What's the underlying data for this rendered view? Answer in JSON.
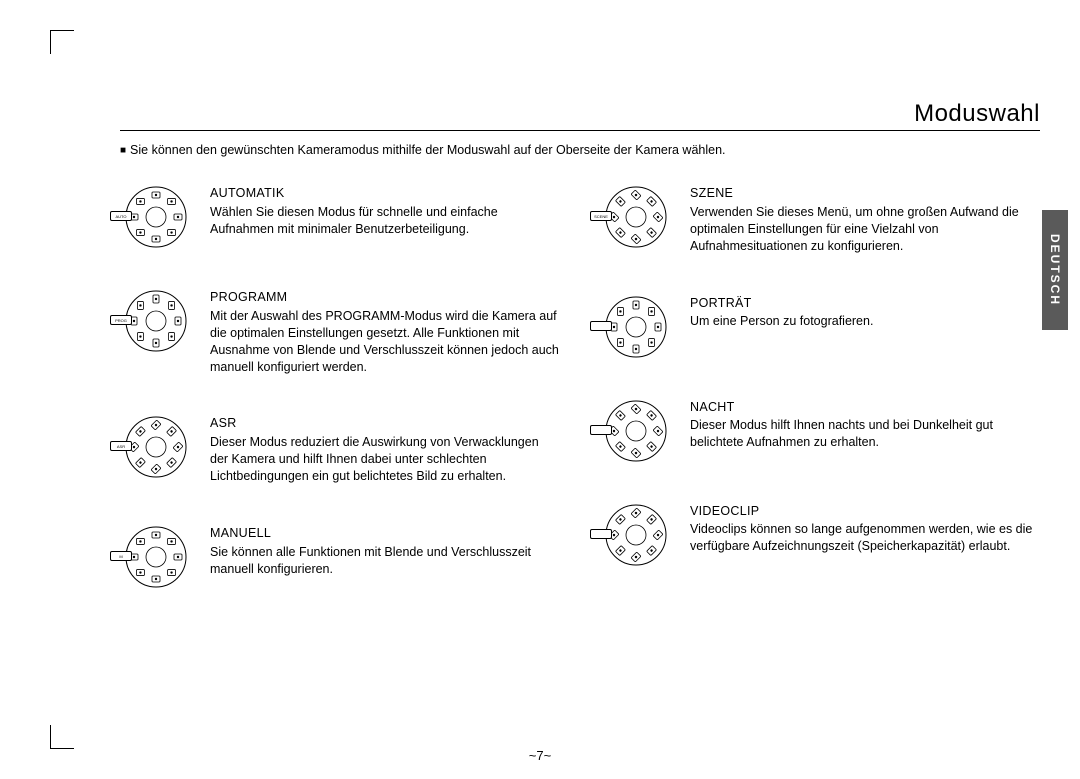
{
  "title": "Moduswahl",
  "intro_bullet": "■",
  "intro": "Sie können den gewünschten Kameramodus mithilfe der Moduswahl auf der Oberseite der Kamera wählen.",
  "side_tab": "DEUTSCH",
  "page_number": "~7~",
  "dial_labels": [
    "AUTO",
    "SCENE",
    "PROG",
    "ASR",
    "M"
  ],
  "left": [
    {
      "heading": "AUTOMATIK",
      "body": "Wählen Sie diesen Modus für schnelle und einfache Aufnahmen mit minimaler Benutzerbeteiligung.",
      "pointer": "AUTO",
      "rotate": 0
    },
    {
      "heading": "PROGRAMM",
      "body": "Mit der Auswahl des PROGRAMM-Modus wird die Kamera auf die optimalen Einstellungen gesetzt. Alle Funktionen mit Ausnahme von Blende und Verschlusszeit können jedoch auch manuell konfiguriert werden.",
      "pointer": "PROG",
      "rotate": 90
    },
    {
      "heading": "ASR",
      "body": "Dieser Modus reduziert die Auswirkung von Verwacklungen der Kamera und hilft Ihnen dabei unter schlechten Lichtbedingungen ein gut belichtetes Bild zu erhalten.",
      "pointer": "ASR",
      "rotate": 135
    },
    {
      "heading": "MANUELL",
      "body": "Sie können alle Funktionen mit Blende und Verschlusszeit manuell konfigurieren.",
      "pointer": "M",
      "rotate": 180
    }
  ],
  "right": [
    {
      "heading": "SZENE",
      "body": "Verwenden Sie dieses Menü, um ohne großen Aufwand die optimalen Einstellungen für eine Vielzahl von Aufnahmesituationen zu konfigurieren.",
      "pointer": "SCENE",
      "rotate": 45
    },
    {
      "heading": "PORTRÄT",
      "body": "Um eine Person zu fotografieren.",
      "pointer": "",
      "rotate": 270
    },
    {
      "heading": "NACHT",
      "body": "Dieser Modus hilft Ihnen nachts und bei Dunkelheit gut belichtete Aufnahmen zu erhalten.",
      "pointer": "",
      "rotate": 225
    },
    {
      "heading": "VIDEOCLIP",
      "body": "Videoclips können so lange aufgenommen werden, wie es die verfügbare Aufzeichnungszeit (Speicherkapazität) erlaubt.",
      "pointer": "",
      "rotate": 315
    }
  ]
}
